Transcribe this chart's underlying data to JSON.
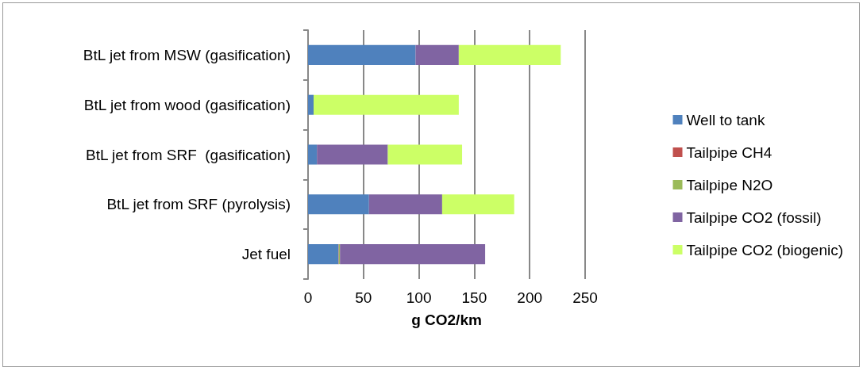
{
  "chart_data": {
    "type": "bar",
    "orientation": "horizontal",
    "stacked": true,
    "xlabel": "g CO2/km",
    "categories": [
      "BtL jet from MSW (gasification)",
      "BtL jet from wood (gasification)",
      "BtL jet from SRF  (gasification)",
      "BtL jet from SRF (pyrolysis)",
      "Jet fuel"
    ],
    "series": [
      {
        "name": "Well to tank",
        "color": "#4f81bd",
        "values": [
          97,
          5,
          8,
          55,
          27.5
        ]
      },
      {
        "name": "Tailpipe CH4",
        "color": "#c0504d",
        "values": [
          0,
          0,
          0,
          0,
          0.3
        ]
      },
      {
        "name": "Tailpipe N2O",
        "color": "#9bbb59",
        "values": [
          0,
          0,
          0,
          0,
          1
        ]
      },
      {
        "name": "Tailpipe CO2 (fossil)",
        "color": "#8064a2",
        "values": [
          39,
          0,
          64,
          66,
          131
        ]
      },
      {
        "name": "Tailpipe CO2 (biogenic)",
        "color": "#ccff66",
        "values": [
          92,
          131,
          67,
          65,
          0
        ]
      }
    ],
    "xlim": [
      0,
      250
    ],
    "xticks": [
      0,
      50,
      100,
      150,
      200,
      250
    ],
    "grid": "x",
    "legend": "right"
  }
}
